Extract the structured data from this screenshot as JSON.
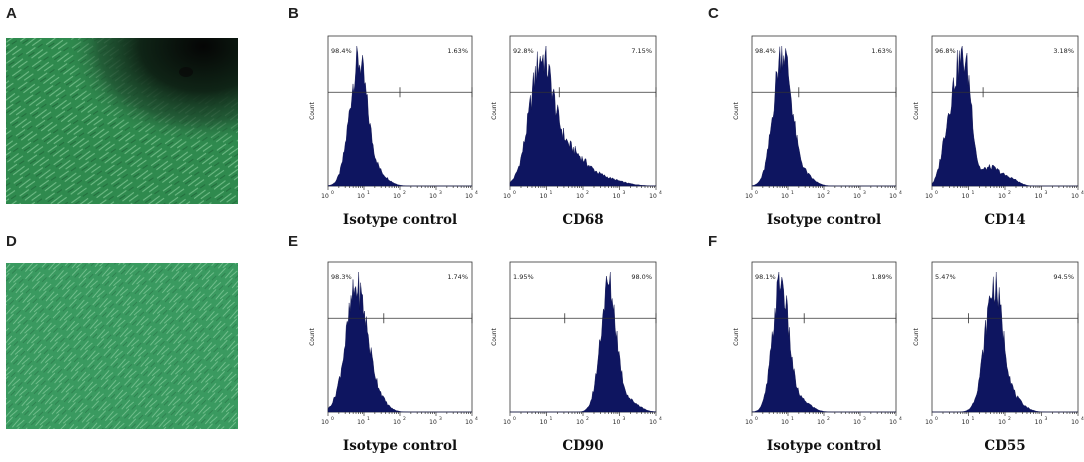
{
  "panel_labels": [
    "A",
    "B",
    "C",
    "D",
    "E",
    "F"
  ],
  "micrographs": [
    {
      "panel": "A",
      "icon": "cell-culture-micrograph",
      "base_color": "#2f8a4e"
    },
    {
      "panel": "D",
      "icon": "cell-culture-micrograph",
      "base_color": "#3a9a60"
    }
  ],
  "y_axis_label": "Count",
  "x_tick_labels": [
    "10",
    "10",
    "10",
    "10",
    "10"
  ],
  "x_tick_exponents": [
    "0",
    "1",
    "2",
    "3",
    "4"
  ],
  "histogram_color": "#0e1560",
  "chart_data": [
    {
      "type": "histogram",
      "panel": "B",
      "title": "Isotype control",
      "left_pct": "98.4%",
      "right_pct": "1.63%",
      "xlim_log10": [
        0,
        4
      ],
      "gate_log10": 2.0,
      "peak_log10": 0.85,
      "spread": 0.25,
      "shape": "single"
    },
    {
      "type": "histogram",
      "panel": "B",
      "title": "CD68",
      "left_pct": "92.8%",
      "right_pct": "7.15%",
      "xlim_log10": [
        0,
        4
      ],
      "gate_log10": 1.35,
      "peak_log10": 0.85,
      "spread": 0.32,
      "shape": "right-tail"
    },
    {
      "type": "histogram",
      "panel": "C",
      "title": "Isotype control",
      "left_pct": "98.4%",
      "right_pct": "1.63%",
      "xlim_log10": [
        0,
        4
      ],
      "gate_log10": 1.3,
      "peak_log10": 0.85,
      "spread": 0.25,
      "shape": "single"
    },
    {
      "type": "histogram",
      "panel": "C",
      "title": "CD14",
      "left_pct": "96.8%",
      "right_pct": "3.18%",
      "xlim_log10": [
        0,
        4
      ],
      "gate_log10": 1.4,
      "peak_log10": 0.7,
      "spread": 0.3,
      "shape": "multi-peak"
    },
    {
      "type": "histogram",
      "panel": "E",
      "title": "Isotype control",
      "left_pct": "98.3%",
      "right_pct": "1.74%",
      "xlim_log10": [
        0,
        4
      ],
      "gate_log10": 1.55,
      "peak_log10": 0.8,
      "spread": 0.3,
      "shape": "single"
    },
    {
      "type": "histogram",
      "panel": "E",
      "title": "CD90",
      "left_pct": "1.95%",
      "right_pct": "98.0%",
      "xlim_log10": [
        0,
        4
      ],
      "gate_log10": 1.5,
      "peak_log10": 2.7,
      "spread": 0.22,
      "shape": "single"
    },
    {
      "type": "histogram",
      "panel": "F",
      "title": "Isotype control",
      "left_pct": "98.1%",
      "right_pct": "1.89%",
      "xlim_log10": [
        0,
        4
      ],
      "gate_log10": 1.45,
      "peak_log10": 0.8,
      "spread": 0.22,
      "shape": "single"
    },
    {
      "type": "histogram",
      "panel": "F",
      "title": "CD55",
      "left_pct": "5.47%",
      "right_pct": "94.5%",
      "xlim_log10": [
        0,
        4
      ],
      "gate_log10": 1.0,
      "peak_log10": 1.7,
      "spread": 0.25,
      "shape": "single"
    }
  ]
}
